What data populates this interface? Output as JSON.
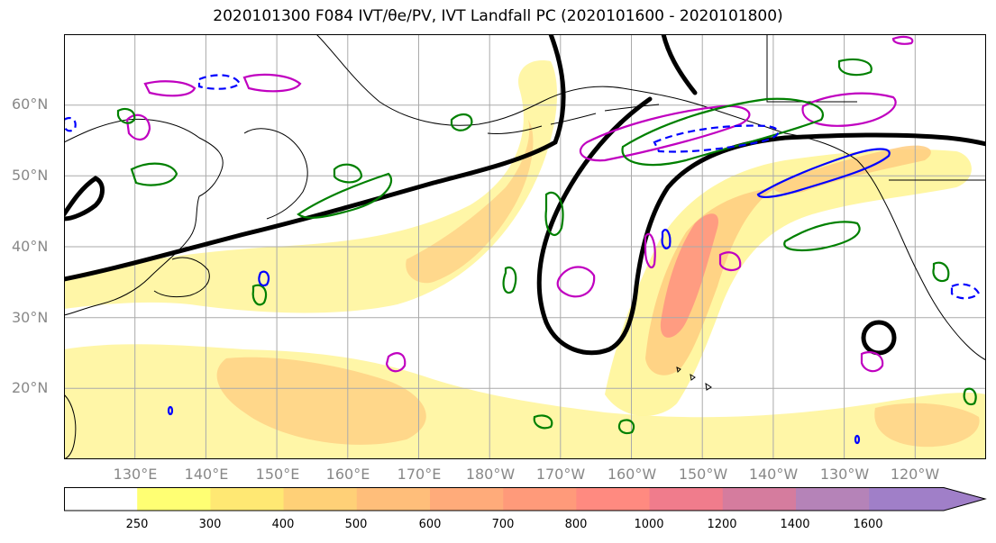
{
  "title": "2020101300 F084 IVT/θe/PV, IVT Landfall PC (2020101600 - 2020101800)",
  "map": {
    "lat_labels": [
      "60°N",
      "50°N",
      "40°N",
      "30°N",
      "20°N"
    ],
    "lon_labels": [
      "130°E",
      "140°E",
      "150°E",
      "160°E",
      "170°E",
      "180°W",
      "170°W",
      "160°W",
      "150°W",
      "140°W",
      "130°W",
      "120°W"
    ],
    "lat_range": [
      10,
      70
    ],
    "lon_range": [
      120,
      250
    ],
    "colors": {
      "ivt_fill_light": "#fff59d",
      "ivt_fill_mid": "#ffcc80",
      "ivt_fill_high": "#ff8a80",
      "theta_contour": "#000000",
      "pv_contour_magenta": "#c000c0",
      "pv_contour_green": "#008000",
      "pv_contour_blue": "#0000ff"
    }
  },
  "colorbar": {
    "ticks": [
      "250",
      "300",
      "400",
      "500",
      "600",
      "700",
      "800",
      "1000",
      "1200",
      "1400",
      "1600"
    ],
    "colors": [
      "#ffffff",
      "#ffff73",
      "#ffe873",
      "#ffd077",
      "#ffbe7a",
      "#ffab7a",
      "#ff9a7a",
      "#ff8a80",
      "#f07c8c",
      "#d57c9e",
      "#b583b8",
      "#a07fc8"
    ]
  }
}
